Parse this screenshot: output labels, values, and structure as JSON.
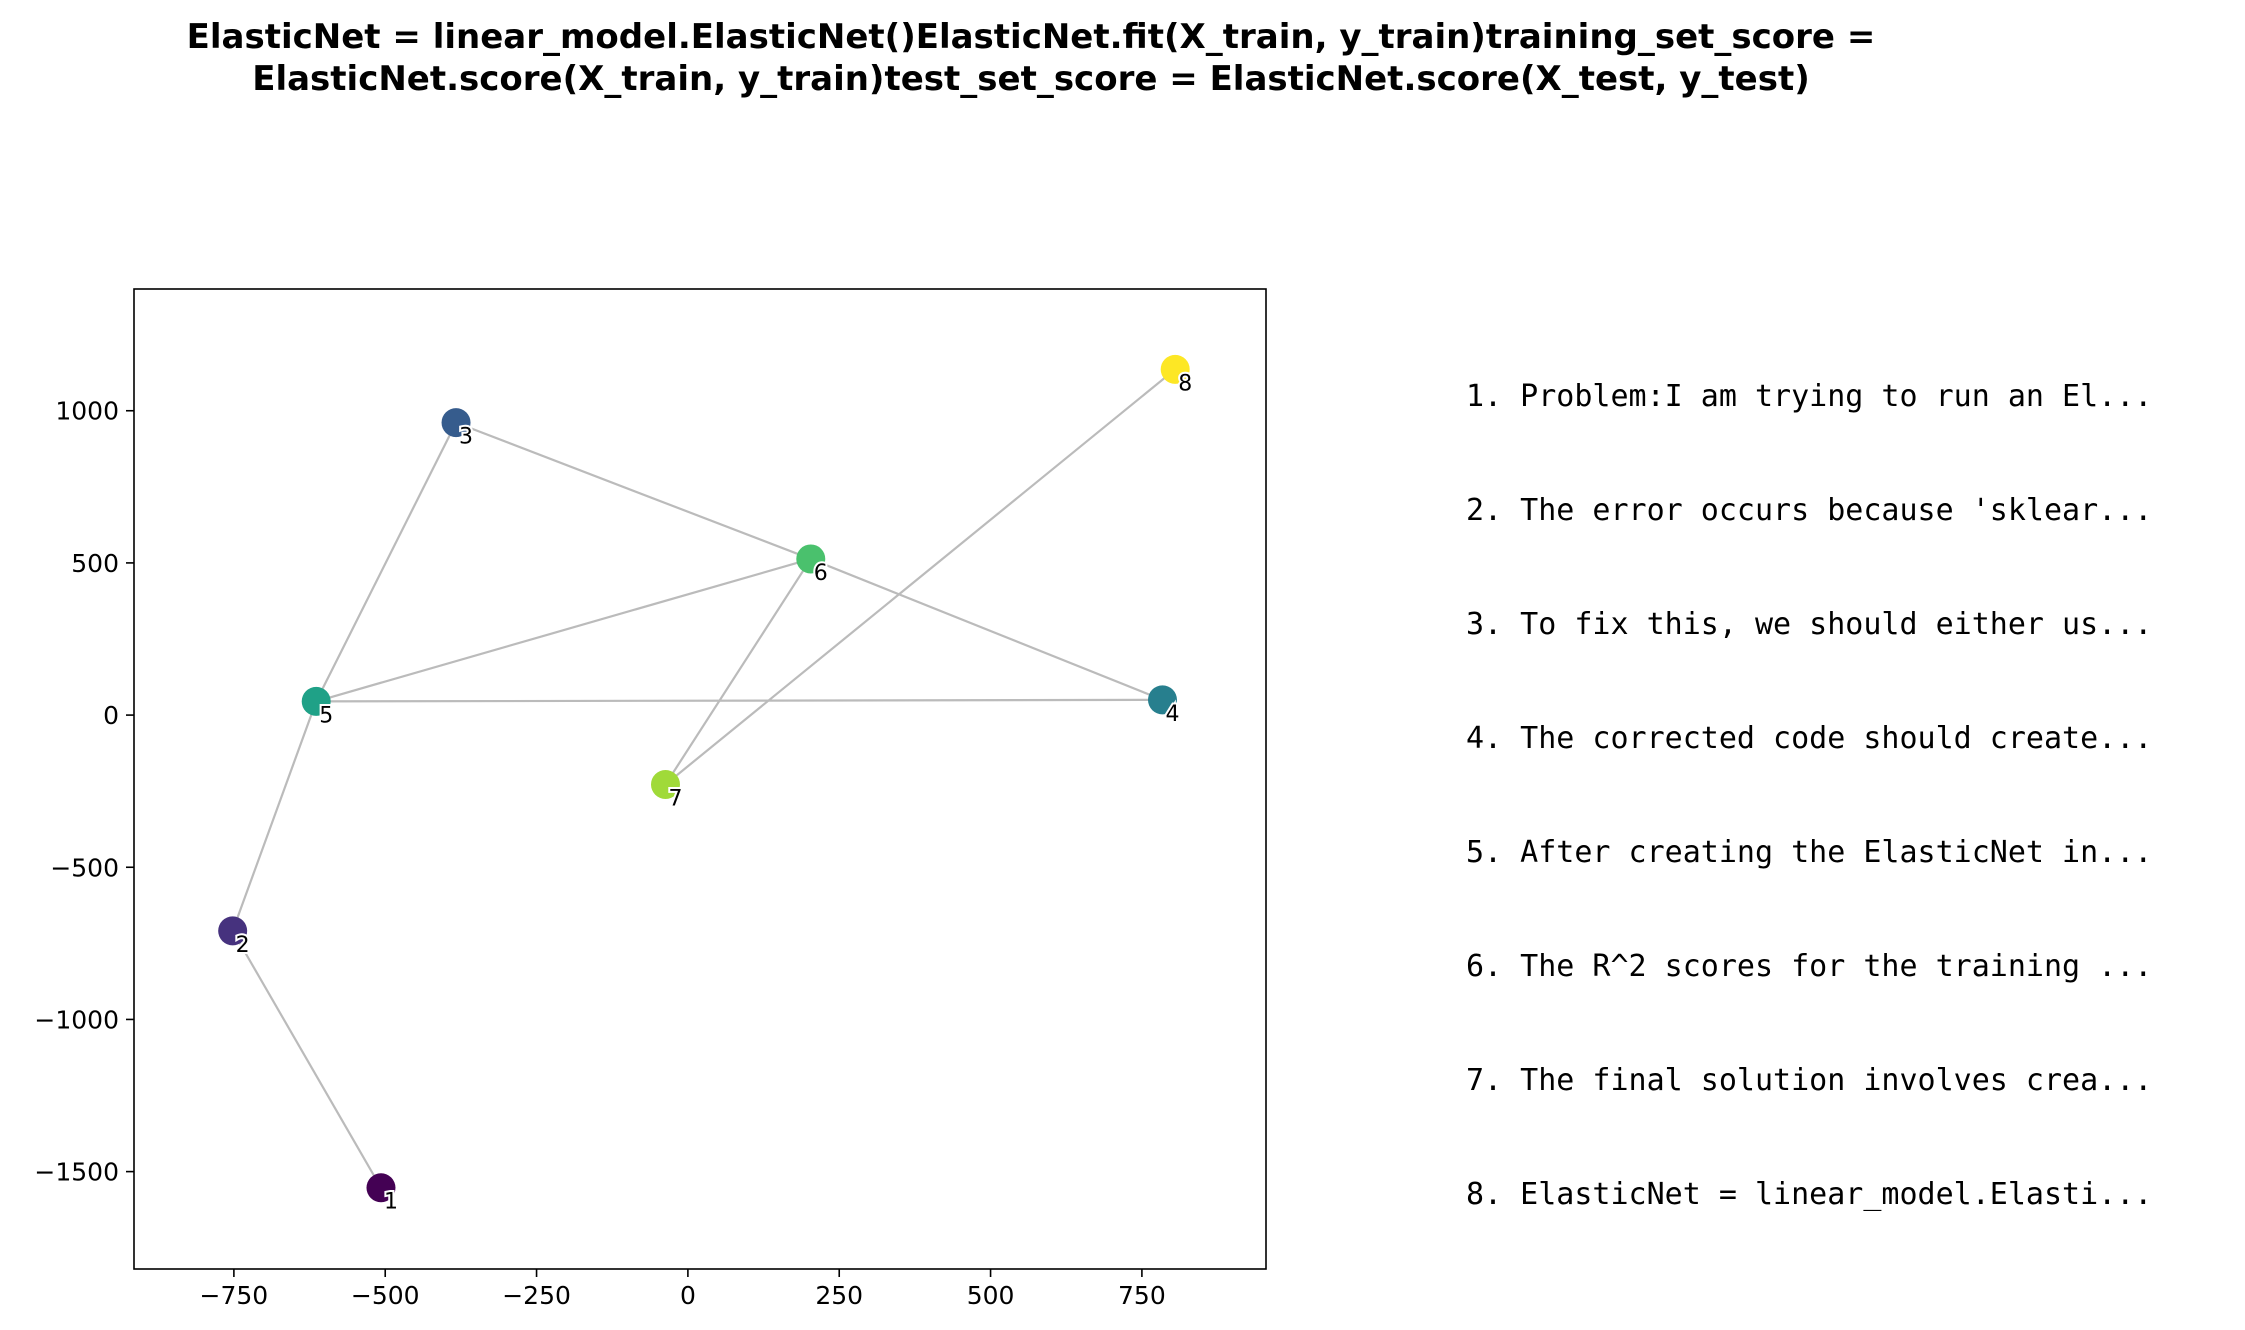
{
  "title": {
    "line1": "ElasticNet = linear_model.ElasticNet()ElasticNet.fit(X_train, y_train)training_set_score =",
    "line2": "ElasticNet.score(X_train, y_train)test_set_score = ElasticNet.score(X_test, y_test)"
  },
  "notes": [
    "1. Problem:I am trying to run an El...",
    "2. The error occurs because 'sklear...",
    "3. To fix this, we should either us...",
    "4. The corrected code should create...",
    "5. After creating the ElasticNet in...",
    "6. The R^2 scores for the training ...",
    "7. The final solution involves crea...",
    "8. ElasticNet = linear_model.Elasti..."
  ],
  "chart_data": {
    "type": "scatter",
    "title": "",
    "xlabel": "",
    "ylabel": "",
    "xlim": [
      -915,
      955
    ],
    "ylim": [
      -1820,
      1400
    ],
    "xticks": [
      -750,
      -500,
      -250,
      0,
      250,
      500,
      750
    ],
    "xtick_labels": [
      "−750",
      "−500",
      "−250",
      "0",
      "250",
      "500",
      "750"
    ],
    "yticks": [
      -1500,
      -1000,
      -500,
      0,
      500,
      1000
    ],
    "ytick_labels": [
      "−1500",
      "−1000",
      "−500",
      "0",
      "500",
      "1000"
    ],
    "grid": false,
    "colormap": "viridis",
    "edge_color": "#bbbbbb",
    "points": [
      {
        "label": "1",
        "x": -507,
        "y": -1553,
        "color": "#440154"
      },
      {
        "label": "2",
        "x": -752,
        "y": -709,
        "color": "#46327e"
      },
      {
        "label": "3",
        "x": -383,
        "y": 961,
        "color": "#365c8d"
      },
      {
        "label": "4",
        "x": 784,
        "y": 50,
        "color": "#277f8e"
      },
      {
        "label": "5",
        "x": -614,
        "y": 45,
        "color": "#1fa187"
      },
      {
        "label": "6",
        "x": 203,
        "y": 513,
        "color": "#4ac16d"
      },
      {
        "label": "7",
        "x": -37,
        "y": -228,
        "color": "#a0da39"
      },
      {
        "label": "8",
        "x": 805,
        "y": 1136,
        "color": "#fde725"
      }
    ],
    "edges": [
      [
        1,
        2
      ],
      [
        2,
        5
      ],
      [
        5,
        3
      ],
      [
        3,
        6
      ],
      [
        6,
        4
      ],
      [
        4,
        5
      ],
      [
        5,
        6
      ],
      [
        6,
        7
      ],
      [
        7,
        8
      ]
    ]
  }
}
